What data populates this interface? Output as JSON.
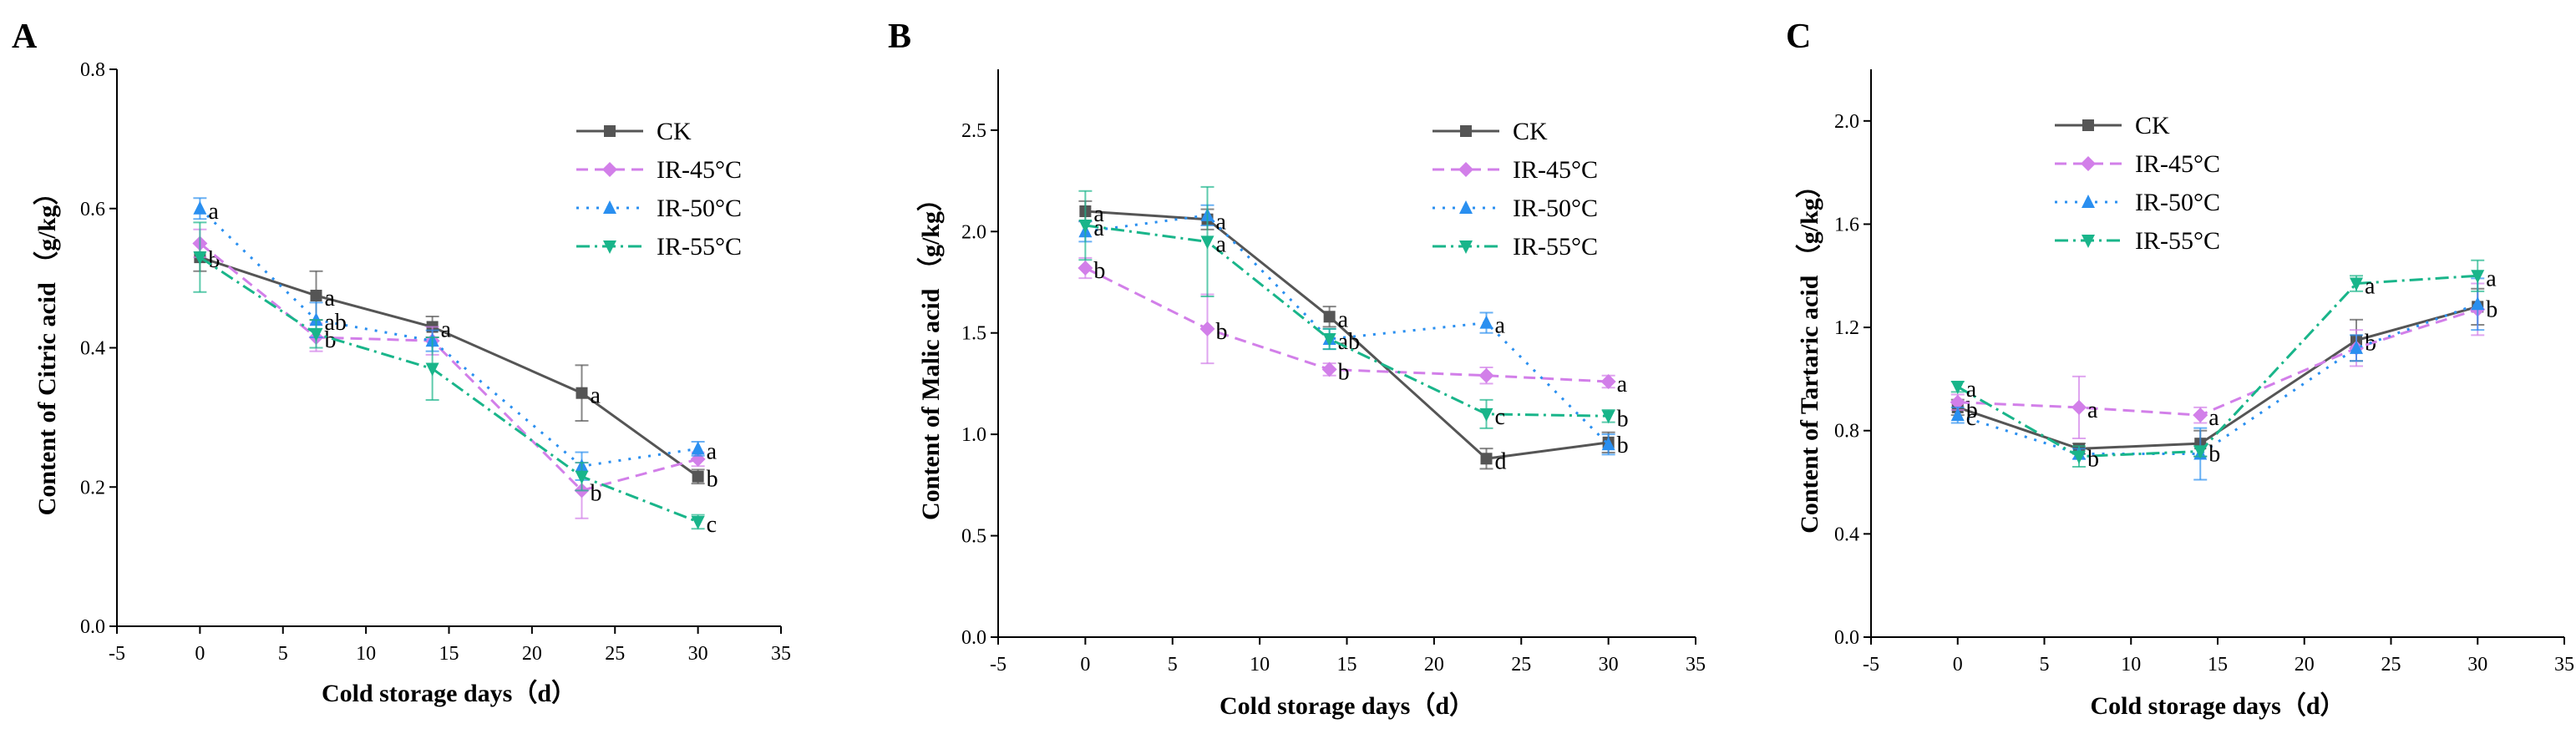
{
  "figure": {
    "panels": [
      "A",
      "B",
      "C"
    ]
  },
  "colors": {
    "CK": "#555555",
    "IR-45°C": "#d27fe9",
    "IR-50°C": "#2a8ff0",
    "IR-55°C": "#19b58a"
  },
  "chart_data": [
    {
      "panel_label": "A",
      "type": "line",
      "xlabel": "Cold storage days（d）",
      "ylabel": "Content of  Citric acid （g/kg）",
      "xlim": [
        -5,
        35
      ],
      "xticks": [
        "-5",
        "0",
        "5",
        "10",
        "15",
        "20",
        "25",
        "30",
        "35"
      ],
      "ylim": [
        0.0,
        0.8
      ],
      "yticks": [
        "0.0",
        "0.2",
        "0.4",
        "0.6",
        "0.8"
      ],
      "legend": "top-right",
      "x": [
        0,
        7,
        14,
        23,
        30
      ],
      "series": [
        {
          "name": "CK",
          "values": [
            0.53,
            0.475,
            0.43,
            0.335,
            0.215
          ],
          "errors": [
            0.02,
            0.035,
            0.015,
            0.04,
            0.01
          ],
          "labels": [
            "b",
            "a",
            "a",
            "a",
            "b"
          ]
        },
        {
          "name": "IR-45°C",
          "values": [
            0.55,
            0.415,
            0.41,
            0.195,
            0.24
          ],
          "errors": [
            0.02,
            0.02,
            0.02,
            0.04,
            0.01
          ],
          "labels": [
            "",
            "b",
            "",
            "b",
            ""
          ]
        },
        {
          "name": "IR-50°C",
          "values": [
            0.6,
            0.44,
            0.41,
            0.23,
            0.255
          ],
          "errors": [
            0.015,
            0.025,
            0.015,
            0.02,
            0.01
          ],
          "labels": [
            "a",
            "ab",
            "",
            "",
            "a"
          ]
        },
        {
          "name": "IR-55°C",
          "values": [
            0.53,
            0.42,
            0.37,
            0.215,
            0.15
          ],
          "errors": [
            0.05,
            0.02,
            0.045,
            0.02,
            0.01
          ],
          "labels": [
            "",
            "",
            "",
            "",
            "c"
          ]
        }
      ]
    },
    {
      "panel_label": "B",
      "type": "line",
      "xlabel": "Cold storage days（d）",
      "ylabel": "Content of  Malic acid （g/kg）",
      "xlim": [
        -5,
        35
      ],
      "xticks": [
        "-5",
        "0",
        "5",
        "10",
        "15",
        "20",
        "25",
        "30",
        "35"
      ],
      "ylim": [
        0.0,
        2.8
      ],
      "yticks": [
        "0.0",
        "0.5",
        "1.0",
        "1.5",
        "2.0",
        "2.5"
      ],
      "legend": "top-right",
      "x": [
        0,
        7,
        14,
        23,
        30
      ],
      "series": [
        {
          "name": "CK",
          "values": [
            2.1,
            2.06,
            1.58,
            0.88,
            0.96
          ],
          "errors": [
            0.05,
            0.05,
            0.05,
            0.05,
            0.05
          ],
          "labels": [
            "a",
            "a",
            "a",
            "d",
            "b"
          ]
        },
        {
          "name": "IR-45°C",
          "values": [
            1.82,
            1.52,
            1.32,
            1.29,
            1.26
          ],
          "errors": [
            0.05,
            0.17,
            0.03,
            0.04,
            0.03
          ],
          "labels": [
            "b",
            "b",
            "b",
            "",
            "a"
          ]
        },
        {
          "name": "IR-50°C",
          "values": [
            2.0,
            2.08,
            1.47,
            1.55,
            0.95
          ],
          "errors": [
            0.05,
            0.05,
            0.05,
            0.05,
            0.05
          ],
          "labels": [
            "",
            "",
            "ab",
            "a",
            ""
          ]
        },
        {
          "name": "IR-55°C",
          "values": [
            2.03,
            1.95,
            1.47,
            1.1,
            1.09
          ],
          "errors": [
            0.17,
            0.27,
            0.05,
            0.07,
            0.03
          ],
          "labels": [
            "a",
            "a",
            "",
            "c",
            "b"
          ]
        }
      ]
    },
    {
      "panel_label": "C",
      "type": "line",
      "xlabel": "Cold storage days（d）",
      "ylabel": "Content of  Tartaric acid （g/kg）",
      "xlim": [
        -5,
        35
      ],
      "xticks": [
        "-5",
        "0",
        "5",
        "10",
        "15",
        "20",
        "25",
        "30",
        "35"
      ],
      "ylim": [
        0.0,
        2.2
      ],
      "yticks": [
        "0.0",
        "0.4",
        "0.8",
        "1.2",
        "1.6",
        "2.0"
      ],
      "legend": "top-right",
      "x": [
        0,
        7,
        14,
        23,
        30
      ],
      "series": [
        {
          "name": "CK",
          "values": [
            0.89,
            0.73,
            0.75,
            1.15,
            1.28
          ],
          "errors": [
            0.03,
            0.02,
            0.05,
            0.08,
            0.07
          ],
          "labels": [
            "b",
            "",
            "",
            "b",
            "b"
          ]
        },
        {
          "name": "IR-45°C",
          "values": [
            0.91,
            0.89,
            0.86,
            1.12,
            1.27
          ],
          "errors": [
            0.03,
            0.12,
            0.03,
            0.07,
            0.1
          ],
          "labels": [
            "",
            "a",
            "a",
            "",
            ""
          ]
        },
        {
          "name": "IR-50°C",
          "values": [
            0.86,
            0.71,
            0.71,
            1.12,
            1.29
          ],
          "errors": [
            0.03,
            0.02,
            0.1,
            0.05,
            0.1
          ],
          "labels": [
            "c",
            "",
            "",
            "",
            ""
          ]
        },
        {
          "name": "IR-55°C",
          "values": [
            0.97,
            0.7,
            0.72,
            1.37,
            1.4
          ],
          "errors": [
            0.02,
            0.04,
            0.02,
            0.03,
            0.06
          ],
          "labels": [
            "a",
            "b",
            "b",
            "a",
            "a"
          ]
        }
      ]
    }
  ]
}
